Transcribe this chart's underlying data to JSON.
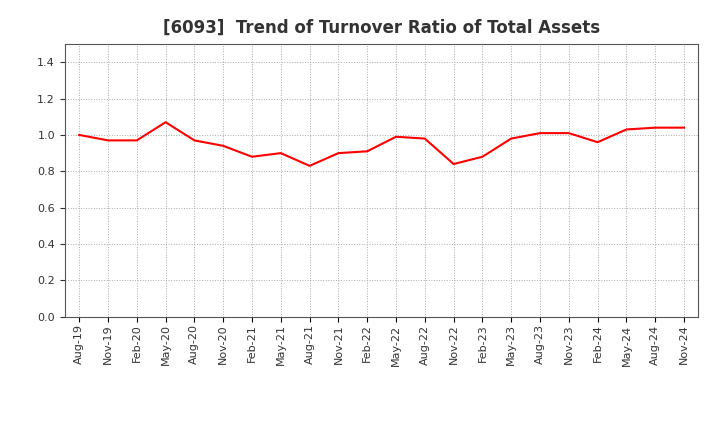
{
  "title": "[6093]  Trend of Turnover Ratio of Total Assets",
  "x_labels": [
    "Aug-19",
    "Nov-19",
    "Feb-20",
    "May-20",
    "Aug-20",
    "Nov-20",
    "Feb-21",
    "May-21",
    "Aug-21",
    "Nov-21",
    "Feb-22",
    "May-22",
    "Aug-22",
    "Nov-22",
    "Feb-23",
    "May-23",
    "Aug-23",
    "Nov-23",
    "Feb-24",
    "May-24",
    "Aug-24",
    "Nov-24"
  ],
  "y_values": [
    1.0,
    0.97,
    0.97,
    1.07,
    0.97,
    0.94,
    0.88,
    0.9,
    0.83,
    0.9,
    0.91,
    0.99,
    0.98,
    0.84,
    0.88,
    0.98,
    1.01,
    1.01,
    0.96,
    1.03,
    1.04,
    1.04
  ],
  "line_color": "#FF0000",
  "line_width": 1.5,
  "ylim": [
    0.0,
    1.5
  ],
  "yticks": [
    0.0,
    0.2,
    0.4,
    0.6,
    0.8,
    1.0,
    1.2,
    1.4
  ],
  "grid_color": "#aaaaaa",
  "background_color": "#ffffff",
  "title_fontsize": 12,
  "tick_fontsize": 8,
  "title_color": "#333333"
}
